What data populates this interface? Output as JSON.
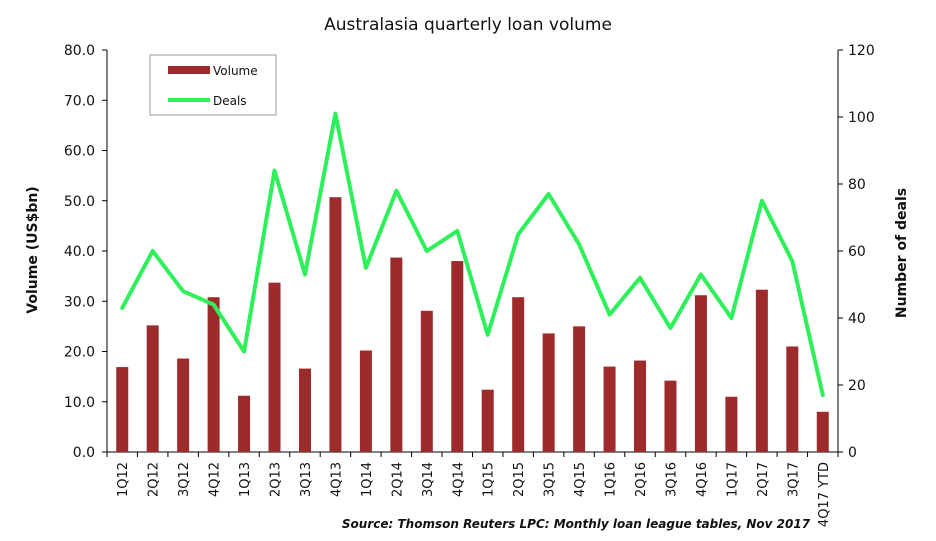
{
  "chart_data": {
    "type": "bar",
    "title": "Australasia quarterly loan volume",
    "categories": [
      "1Q12",
      "2Q12",
      "3Q12",
      "4Q12",
      "1Q13",
      "2Q13",
      "3Q13",
      "4Q13",
      "1Q14",
      "2Q14",
      "3Q14",
      "4Q14",
      "1Q15",
      "2Q15",
      "3Q15",
      "4Q15",
      "1Q16",
      "2Q16",
      "3Q16",
      "4Q16",
      "1Q17",
      "2Q17",
      "3Q17",
      "4Q17 YTD"
    ],
    "series": [
      {
        "name": "Volume",
        "type": "bar",
        "axis": "left",
        "color": "#9e2b2b",
        "values": [
          16.9,
          25.2,
          18.6,
          30.8,
          11.2,
          33.7,
          16.6,
          50.7,
          20.2,
          38.7,
          28.1,
          38.0,
          12.4,
          30.8,
          23.6,
          25.0,
          17.0,
          18.2,
          14.2,
          31.2,
          11.0,
          32.3,
          21.0,
          8.0
        ]
      },
      {
        "name": "Deals",
        "type": "line",
        "axis": "right",
        "color": "#2ef05a",
        "values": [
          43,
          60,
          48,
          44,
          30,
          84,
          53,
          101,
          55,
          78,
          60,
          66,
          35,
          65,
          77,
          62,
          41,
          52,
          37,
          53,
          40,
          75,
          57,
          17
        ]
      }
    ],
    "ylabel": "Volume (US$bn)",
    "y2label": "Number of deals",
    "ylim": [
      0,
      80
    ],
    "y2lim": [
      0,
      120
    ],
    "yticks": [
      "0.0",
      "10.0",
      "20.0",
      "30.0",
      "40.0",
      "50.0",
      "60.0",
      "70.0",
      "80.0"
    ],
    "y2ticks": [
      "0",
      "20",
      "40",
      "60",
      "80",
      "100",
      "120"
    ],
    "grid": false,
    "legend": "top-left",
    "source": "Source: Thomson Reuters LPC: Monthly loan league tables, Nov 2017"
  }
}
